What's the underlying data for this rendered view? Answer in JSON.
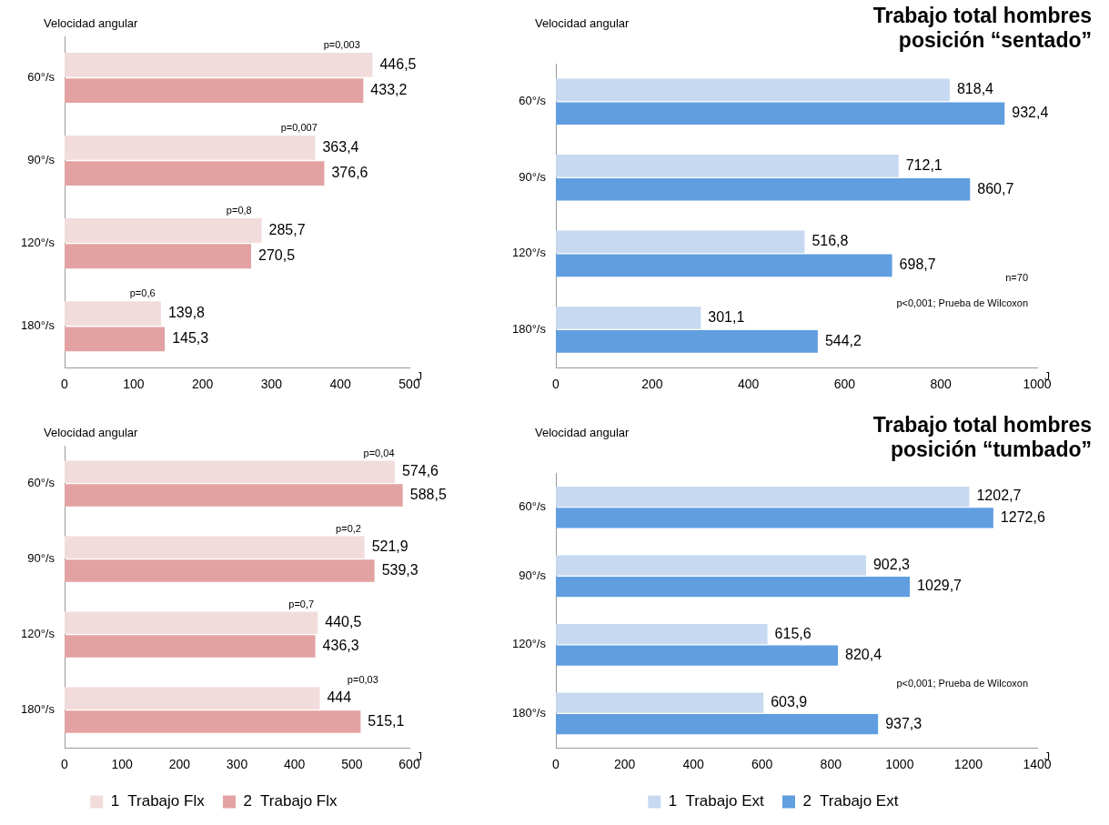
{
  "chart_data": [
    {
      "type": "bar",
      "orientation": "horizontal",
      "ylabel": "Velocidad angular",
      "xlabel": "J",
      "categories": [
        "60°/s",
        "90°/s",
        "120°/s",
        "180°/s"
      ],
      "series": [
        {
          "color": "#f2dcdb",
          "values": [
            446.5,
            363.4,
            285.7,
            139.8
          ],
          "value_labels": [
            "446,5",
            "363,4",
            "285,7",
            "139,8"
          ]
        },
        {
          "color": "#e3a2a2",
          "values": [
            433.2,
            376.6,
            270.5,
            145.3
          ],
          "value_labels": [
            "433,2",
            "376,6",
            "270,5",
            "145,3"
          ]
        }
      ],
      "xlim": [
        0,
        500
      ],
      "xticks": [
        0,
        100,
        200,
        300,
        400,
        500
      ],
      "annotations": [
        {
          "text": "p=0,003",
          "x": 402,
          "y": "60°/s"
        },
        {
          "text": "p=0,007",
          "x": 340,
          "y": "90°/s"
        },
        {
          "text": "p=0,8",
          "x": 253,
          "y": "120°/s"
        },
        {
          "text": "p=0,6",
          "x": 113,
          "y": "180°/s"
        }
      ]
    },
    {
      "type": "bar",
      "orientation": "horizontal",
      "title": "Trabajo total hombres posición “sentado”",
      "ylabel": "Velocidad angular",
      "xlabel": "J",
      "categories": [
        "60°/s",
        "90°/s",
        "120°/s",
        "180°/s"
      ],
      "series": [
        {
          "color": "#c6d9f1",
          "values": [
            818.4,
            712.1,
            516.8,
            301.1
          ],
          "value_labels": [
            "818,4",
            "712,1",
            "516,8",
            "301,1"
          ]
        },
        {
          "color": "#609ee0",
          "values": [
            932.4,
            860.7,
            698.7,
            544.2
          ],
          "value_labels": [
            "932,4",
            "860,7",
            "698,7",
            "544,2"
          ]
        }
      ],
      "xlim": [
        0,
        1000
      ],
      "xticks": [
        0,
        200,
        400,
        600,
        800,
        1000
      ],
      "annotations": [
        "p<0,001; Prueba de Wilcoxon",
        "n=70"
      ]
    },
    {
      "type": "bar",
      "orientation": "horizontal",
      "ylabel": "Velocidad angular",
      "xlabel": "J",
      "categories": [
        "60°/s",
        "90°/s",
        "120°/s",
        "180°/s"
      ],
      "series": [
        {
          "name": "1  Trabajo Flx",
          "color": "#f2dcdb",
          "values": [
            574.6,
            521.9,
            440.5,
            444
          ],
          "value_labels": [
            "574,6",
            "521,9",
            "440,5",
            "444"
          ]
        },
        {
          "name": "2  Trabajo Flx",
          "color": "#e3a2a2",
          "values": [
            588.5,
            539.3,
            436.3,
            515.1
          ],
          "value_labels": [
            "588,5",
            "539,3",
            "436,3",
            "515,1"
          ]
        }
      ],
      "xlim": [
        0,
        600
      ],
      "xticks": [
        0,
        100,
        200,
        300,
        400,
        500,
        600
      ],
      "legend": "bottom",
      "annotations": [
        {
          "text": "p=0,04",
          "x": 547,
          "y": "60°/s"
        },
        {
          "text": "p=0,2",
          "x": 494,
          "y": "90°/s"
        },
        {
          "text": "p=0,7",
          "x": 412,
          "y": "120°/s"
        },
        {
          "text": "p=0,03",
          "x": 519,
          "y": "180°/s"
        }
      ]
    },
    {
      "type": "bar",
      "orientation": "horizontal",
      "title": "Trabajo total hombres posición “tumbado”",
      "ylabel": "Velocidad angular",
      "xlabel": "J",
      "categories": [
        "60°/s",
        "90°/s",
        "120°/s",
        "180°/s"
      ],
      "series": [
        {
          "name": "1  Trabajo Ext",
          "color": "#c6d9f1",
          "values": [
            1202.7,
            902.3,
            615.6,
            603.9
          ],
          "value_labels": [
            "1202,7",
            "902,3",
            "615,6",
            "603,9"
          ]
        },
        {
          "name": "2  Trabajo Ext",
          "color": "#609ee0",
          "values": [
            1272.6,
            1029.7,
            820.4,
            937.3
          ],
          "value_labels": [
            "1272,6",
            "1029,7",
            "820,4",
            "937,3"
          ]
        }
      ],
      "xlim": [
        0,
        1400
      ],
      "xticks": [
        0,
        200,
        400,
        600,
        800,
        1000,
        1200,
        1400
      ],
      "legend": "bottom",
      "annotations": [
        "p<0,001; Prueba de Wilcoxon"
      ]
    }
  ]
}
